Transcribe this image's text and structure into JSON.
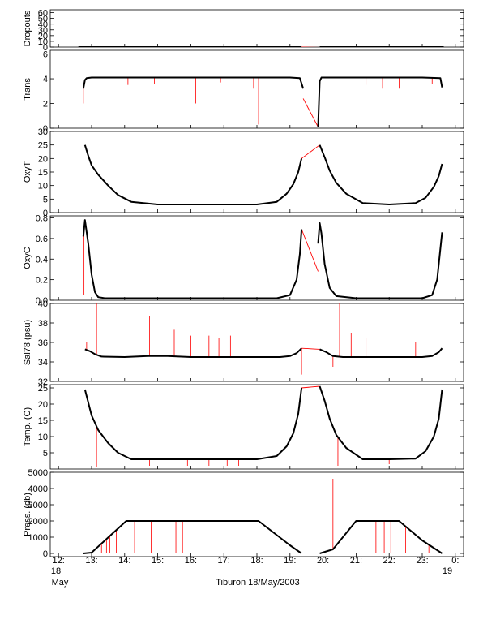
{
  "colors": {
    "trace": "#000000",
    "spike": "#ff0000",
    "frame": "#000000"
  },
  "chart_data": {
    "type": "line",
    "title": "",
    "x_axis": {
      "range_hours": [
        11.75,
        24.25
      ],
      "ticks": [
        {
          "value": 12,
          "label": "12:"
        },
        {
          "value": 13,
          "label": "13:"
        },
        {
          "value": 14,
          "label": "14:"
        },
        {
          "value": 15,
          "label": "15:"
        },
        {
          "value": 16,
          "label": "16:"
        },
        {
          "value": 17,
          "label": "17:"
        },
        {
          "value": 18,
          "label": "18:"
        },
        {
          "value": 19,
          "label": "19:"
        },
        {
          "value": 20,
          "label": "20:"
        },
        {
          "value": 21,
          "label": "21:"
        },
        {
          "value": 22,
          "label": "22:"
        },
        {
          "value": 23,
          "label": "23:"
        },
        {
          "value": 24,
          "label": "0:"
        }
      ],
      "start_date_day": "18",
      "start_date_month": "May",
      "end_date_day": "19",
      "caption": "Tiburon 18/May/2003"
    },
    "panels": [
      {
        "ylabel": "Dropouts",
        "ylim": [
          0,
          65
        ],
        "yticks": [
          0,
          10,
          20,
          30,
          40,
          50,
          60
        ],
        "segments": [
          {
            "x": [
              12.6,
              19.35
            ],
            "y": [
              0,
              0
            ]
          },
          {
            "x": [
              19.9,
              23.65
            ],
            "y": [
              0,
              0
            ]
          }
        ],
        "red_segments": [
          {
            "x": [
              19.35,
              19.9
            ],
            "y": [
              0,
              -0.5
            ]
          }
        ],
        "spikes": []
      },
      {
        "ylabel": "Trans",
        "ylim": [
          0,
          6.3
        ],
        "yticks": [
          0,
          2,
          4,
          6
        ],
        "segments": [
          {
            "x": [
              12.75,
              12.8,
              12.85,
              13.0,
              14.0,
              15.0,
              16.0,
              17.0,
              18.0,
              19.0,
              19.3,
              19.4
            ],
            "y": [
              3.2,
              3.9,
              4.05,
              4.1,
              4.1,
              4.1,
              4.1,
              4.1,
              4.1,
              4.1,
              4.05,
              3.2
            ]
          },
          {
            "x": [
              19.85,
              19.9,
              19.95,
              20.0,
              21.0,
              22.0,
              23.0,
              23.55,
              23.6
            ],
            "y": [
              0.1,
              3.8,
              4.1,
              4.1,
              4.1,
              4.1,
              4.1,
              4.05,
              3.3
            ]
          }
        ],
        "red_segments": [
          {
            "x": [
              19.4,
              19.85
            ],
            "y": [
              2.4,
              0.1
            ]
          }
        ],
        "spikes": [
          {
            "x": 12.75,
            "y": 2.0
          },
          {
            "x": 14.1,
            "y": 3.5
          },
          {
            "x": 14.9,
            "y": 3.6
          },
          {
            "x": 16.15,
            "y": 2.0
          },
          {
            "x": 16.9,
            "y": 3.7
          },
          {
            "x": 17.9,
            "y": 3.2
          },
          {
            "x": 18.05,
            "y": 0.3
          },
          {
            "x": 21.3,
            "y": 3.5
          },
          {
            "x": 21.8,
            "y": 3.2
          },
          {
            "x": 22.3,
            "y": 3.2
          },
          {
            "x": 23.3,
            "y": 3.6
          }
        ]
      },
      {
        "ylabel": "OxyT",
        "ylim": [
          0,
          30
        ],
        "yticks": [
          0,
          5,
          10,
          15,
          20,
          25,
          30
        ],
        "segments": [
          {
            "x": [
              12.8,
              12.9,
              13.0,
              13.2,
              13.5,
              13.8,
              14.2,
              15.0,
              16.0,
              17.0,
              18.0,
              18.6,
              18.9,
              19.1,
              19.25,
              19.35
            ],
            "y": [
              25.0,
              21.0,
              17.5,
              14.0,
              10.0,
              6.5,
              4.0,
              3.0,
              3.0,
              3.0,
              3.0,
              4.0,
              7.0,
              10.5,
              15.0,
              20.0
            ]
          },
          {
            "x": [
              19.9,
              20.05,
              20.2,
              20.4,
              20.7,
              21.2,
              22.0,
              22.8,
              23.1,
              23.35,
              23.5,
              23.6
            ],
            "y": [
              25.0,
              20.5,
              15.5,
              11.0,
              7.0,
              3.5,
              3.0,
              3.5,
              5.5,
              9.5,
              13.5,
              18.0
            ]
          }
        ],
        "red_segments": [
          {
            "x": [
              19.35,
              19.9
            ],
            "y": [
              20.0,
              25.0
            ]
          }
        ],
        "spikes": []
      },
      {
        "ylabel": "OxyC",
        "ylim": [
          0,
          0.82
        ],
        "yticks": [
          0.0,
          0.2,
          0.4,
          0.6,
          0.8
        ],
        "segments": [
          {
            "x": [
              12.75,
              12.8,
              12.9,
              13.0,
              13.1,
              13.2,
              13.4,
              14.0,
              15.0,
              16.0,
              17.0,
              18.0,
              18.6,
              19.0,
              19.2,
              19.3,
              19.35
            ],
            "y": [
              0.62,
              0.78,
              0.55,
              0.25,
              0.08,
              0.03,
              0.02,
              0.02,
              0.02,
              0.02,
              0.02,
              0.02,
              0.02,
              0.05,
              0.2,
              0.45,
              0.69
            ]
          },
          {
            "x": [
              19.85,
              19.9,
              19.95,
              20.05,
              20.2,
              20.4,
              21.0,
              22.0,
              23.0,
              23.3,
              23.45,
              23.6
            ],
            "y": [
              0.55,
              0.75,
              0.65,
              0.35,
              0.12,
              0.04,
              0.02,
              0.02,
              0.02,
              0.05,
              0.2,
              0.66
            ]
          }
        ],
        "red_segments": [
          {
            "x": [
              19.35,
              19.85
            ],
            "y": [
              0.69,
              0.28
            ]
          }
        ],
        "spikes": [
          {
            "x": 12.77,
            "y": 0.05
          }
        ]
      },
      {
        "ylabel": "Sal78 (psu)",
        "ylim": [
          32,
          40
        ],
        "yticks": [
          32,
          34,
          36,
          38,
          40
        ],
        "segments": [
          {
            "x": [
              12.8,
              12.95,
              13.1,
              13.3,
              14.0,
              14.7,
              15.3,
              16.0,
              17.0,
              18.0,
              18.7,
              19.0,
              19.2,
              19.35
            ],
            "y": [
              35.3,
              35.1,
              34.8,
              34.55,
              34.5,
              34.6,
              34.6,
              34.5,
              34.5,
              34.5,
              34.5,
              34.6,
              34.9,
              35.4
            ]
          },
          {
            "x": [
              19.9,
              20.1,
              20.3,
              20.6,
              21.0,
              22.0,
              23.0,
              23.3,
              23.5,
              23.6
            ],
            "y": [
              35.3,
              35.0,
              34.6,
              34.5,
              34.5,
              34.5,
              34.5,
              34.6,
              35.0,
              35.4
            ]
          }
        ],
        "red_segments": [
          {
            "x": [
              19.35,
              19.9
            ],
            "y": [
              35.4,
              35.3
            ]
          }
        ],
        "spikes": [
          {
            "x": 13.15,
            "y": 40.0
          },
          {
            "x": 14.75,
            "y": 38.7
          },
          {
            "x": 15.5,
            "y": 37.3
          },
          {
            "x": 16.0,
            "y": 36.7
          },
          {
            "x": 16.55,
            "y": 36.7
          },
          {
            "x": 16.85,
            "y": 36.5
          },
          {
            "x": 17.2,
            "y": 36.7
          },
          {
            "x": 19.35,
            "y": 32.7
          },
          {
            "x": 20.3,
            "y": 33.5
          },
          {
            "x": 20.5,
            "y": 40.0
          },
          {
            "x": 20.85,
            "y": 37.0
          },
          {
            "x": 21.3,
            "y": 36.5
          },
          {
            "x": 22.8,
            "y": 36.0
          },
          {
            "x": 12.85,
            "y": 36.0
          }
        ]
      },
      {
        "ylabel": "Temp. (C)",
        "ylim": [
          0,
          26
        ],
        "yticks": [
          5,
          10,
          15,
          20,
          25
        ],
        "segments": [
          {
            "x": [
              12.8,
              12.9,
              13.0,
              13.2,
              13.5,
              13.8,
              14.2,
              15.0,
              16.0,
              17.0,
              18.0,
              18.6,
              18.9,
              19.1,
              19.25,
              19.35
            ],
            "y": [
              24.5,
              20.5,
              16.5,
              12.0,
              8.0,
              5.0,
              3.0,
              3.0,
              3.0,
              3.0,
              3.0,
              4.0,
              7.0,
              11.0,
              17.0,
              25.0
            ]
          },
          {
            "x": [
              19.9,
              20.05,
              20.2,
              20.4,
              20.7,
              21.2,
              22.0,
              22.8,
              23.1,
              23.35,
              23.5,
              23.6
            ],
            "y": [
              25.5,
              21.0,
              15.5,
              10.5,
              6.5,
              3.0,
              3.0,
              3.2,
              5.5,
              10.0,
              15.5,
              24.5
            ]
          }
        ],
        "red_segments": [
          {
            "x": [
              19.35,
              19.9
            ],
            "y": [
              25.0,
              25.5
            ]
          }
        ],
        "spikes": [
          {
            "x": 13.15,
            "y": 0.5
          },
          {
            "x": 14.75,
            "y": 1.0
          },
          {
            "x": 15.9,
            "y": 1.0
          },
          {
            "x": 16.55,
            "y": 1.0
          },
          {
            "x": 17.1,
            "y": 1.0
          },
          {
            "x": 17.45,
            "y": 1.0
          },
          {
            "x": 20.45,
            "y": 1.0
          },
          {
            "x": 22.0,
            "y": 1.5
          }
        ]
      },
      {
        "ylabel": "Press. (db)",
        "ylim": [
          -200,
          5000
        ],
        "yticks": [
          0,
          1000,
          2000,
          3000,
          4000,
          5000
        ],
        "segments": [
          {
            "x": [
              12.75,
              13.0,
              14.05,
              18.05,
              19.0,
              19.35
            ],
            "y": [
              0,
              50,
              2000,
              2000,
              500,
              0
            ]
          },
          {
            "x": [
              19.9,
              20.3,
              21.0,
              22.3,
              23.0,
              23.6
            ],
            "y": [
              0,
              250,
              2000,
              2000,
              800,
              0
            ]
          }
        ],
        "red_segments": [],
        "spikes": [
          {
            "x": 13.3,
            "y": 0
          },
          {
            "x": 13.45,
            "y": 0
          },
          {
            "x": 13.55,
            "y": 0
          },
          {
            "x": 13.75,
            "y": 0
          },
          {
            "x": 14.3,
            "y": 0
          },
          {
            "x": 14.8,
            "y": 0
          },
          {
            "x": 15.55,
            "y": 0
          },
          {
            "x": 15.75,
            "y": 0
          },
          {
            "x": 20.3,
            "y": 4600
          },
          {
            "x": 21.6,
            "y": 0
          },
          {
            "x": 21.85,
            "y": 0
          },
          {
            "x": 22.05,
            "y": 0
          },
          {
            "x": 22.5,
            "y": 0
          },
          {
            "x": 23.2,
            "y": 0
          }
        ]
      }
    ]
  }
}
